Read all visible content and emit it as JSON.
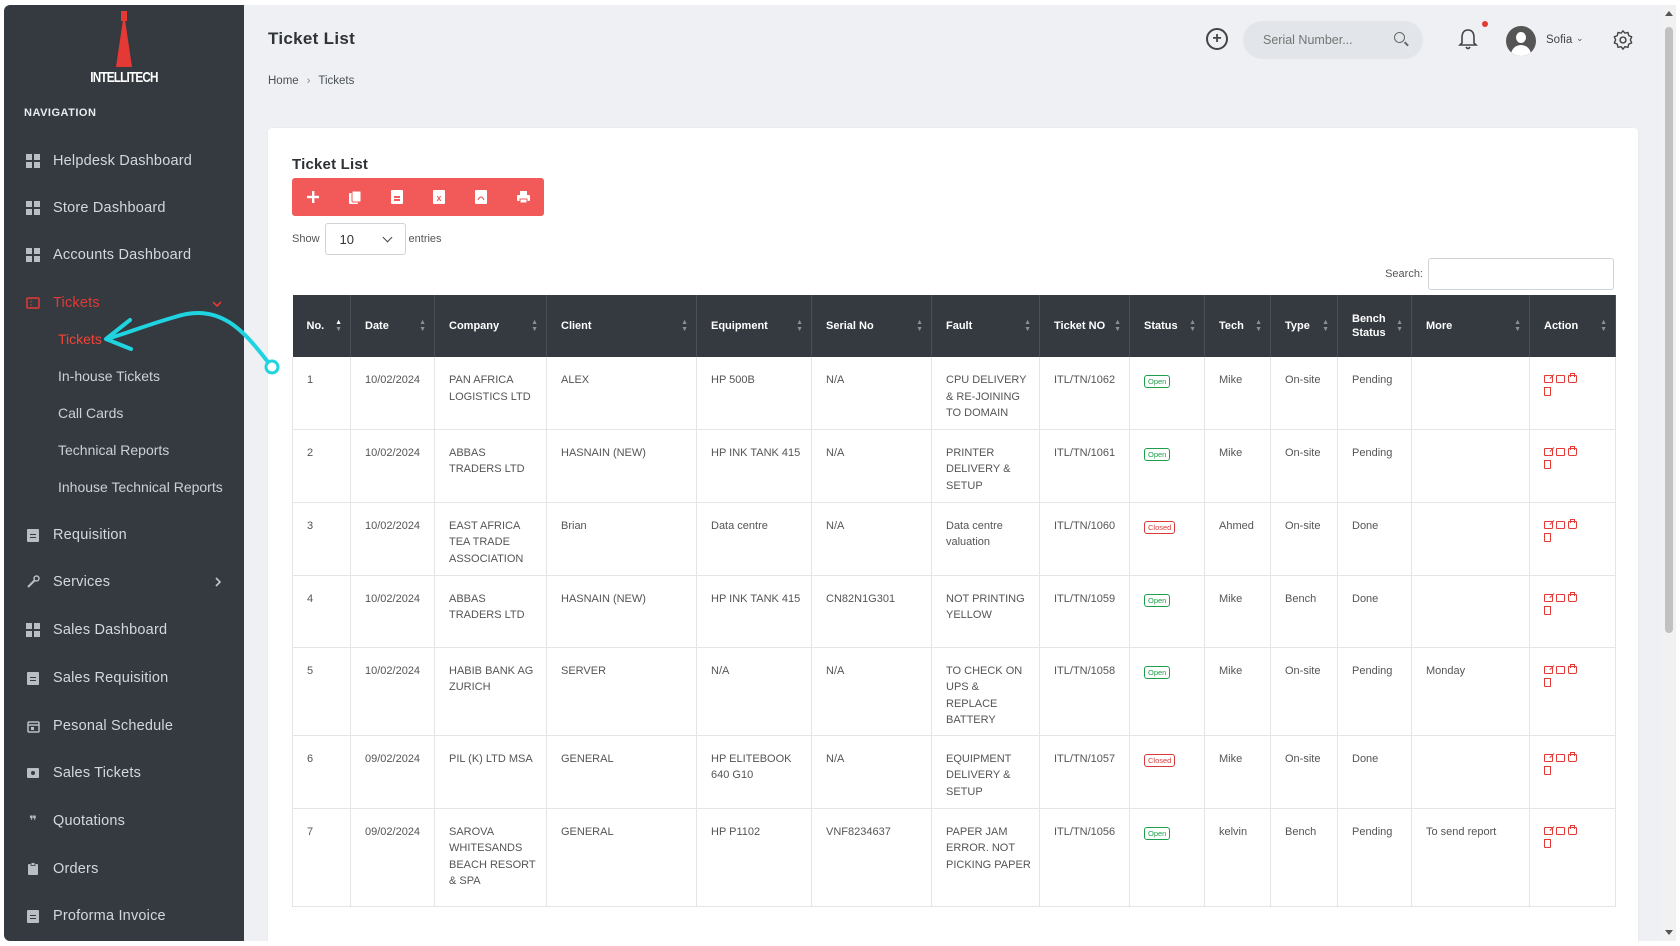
{
  "brand": {
    "name": "INTELLITECH"
  },
  "sidebar": {
    "heading": "NAVIGATION",
    "items": [
      {
        "label": "Helpdesk Dashboard",
        "icon": "dashboard-icon"
      },
      {
        "label": "Store Dashboard",
        "icon": "dashboard-icon"
      },
      {
        "label": "Accounts Dashboard",
        "icon": "dashboard-icon"
      },
      {
        "label": "Tickets",
        "icon": "ticket-icon",
        "expanded": true
      },
      {
        "label": "Requisition",
        "icon": "document-icon"
      },
      {
        "label": "Services",
        "icon": "wrench-icon"
      },
      {
        "label": "Sales Dashboard",
        "icon": "dashboard-icon"
      },
      {
        "label": "Sales Requisition",
        "icon": "document-icon"
      },
      {
        "label": "Pesonal Schedule",
        "icon": "calendar-icon"
      },
      {
        "label": "Sales Tickets",
        "icon": "ticket-icon"
      },
      {
        "label": "Quotations",
        "icon": "quote-icon"
      },
      {
        "label": "Orders",
        "icon": "clipboard-icon"
      },
      {
        "label": "Proforma Invoice",
        "icon": "document-icon"
      }
    ],
    "tickets_submenu": [
      {
        "label": "Tickets",
        "active": true
      },
      {
        "label": "In-house Tickets"
      },
      {
        "label": "Call Cards"
      },
      {
        "label": "Technical Reports"
      },
      {
        "label": "Inhouse Technical Reports"
      }
    ]
  },
  "header": {
    "title": "Ticket List",
    "search_placeholder": "Serial Number...",
    "user_name": "Sofia",
    "breadcrumb": [
      "Home",
      "Tickets"
    ]
  },
  "card": {
    "title": "Ticket List",
    "show_label": "Show",
    "entries_value": "10",
    "entries_label": "entries",
    "search_label": "Search:",
    "toolbar": [
      "add-icon",
      "copy-icon",
      "csv-icon",
      "excel-icon",
      "pdf-icon",
      "print-icon"
    ]
  },
  "table": {
    "columns": [
      "No.",
      "Date",
      "Company",
      "Client",
      "Equipment",
      "Serial No",
      "Fault",
      "Ticket NO",
      "Status",
      "Tech",
      "Type",
      "Bench Status",
      "More",
      "Action"
    ],
    "rows": [
      {
        "no": "1",
        "date": "10/02/2024",
        "company": "PAN AFRICA LOGISTICS LTD",
        "client": "ALEX",
        "equipment": "HP 500B",
        "serial": "N/A",
        "fault": "CPU DELIVERY & RE-JOINING TO DOMAIN",
        "ticket": "ITL/TN/1062",
        "status": "Open",
        "tech": "Mike",
        "type": "On-site",
        "bench": "Pending",
        "more": ""
      },
      {
        "no": "2",
        "date": "10/02/2024",
        "company": "ABBAS TRADERS LTD",
        "client": "HASNAIN (NEW)",
        "equipment": "HP INK TANK 415",
        "serial": "N/A",
        "fault": "PRINTER DELIVERY & SETUP",
        "ticket": "ITL/TN/1061",
        "status": "Open",
        "tech": "Mike",
        "type": "On-site",
        "bench": "Pending",
        "more": ""
      },
      {
        "no": "3",
        "date": "10/02/2024",
        "company": "EAST AFRICA TEA TRADE ASSOCIATION",
        "client": "Brian",
        "equipment": "Data centre",
        "serial": "N/A",
        "fault": "Data centre valuation",
        "ticket": "ITL/TN/1060",
        "status": "Closed",
        "tech": "Ahmed",
        "type": "On-site",
        "bench": "Done",
        "more": ""
      },
      {
        "no": "4",
        "date": "10/02/2024",
        "company": "ABBAS TRADERS LTD",
        "client": "HASNAIN (NEW)",
        "equipment": "HP INK TANK 415",
        "serial": "CN82N1G301",
        "fault": "NOT PRINTING YELLOW",
        "ticket": "ITL/TN/1059",
        "status": "Open",
        "tech": "Mike",
        "type": "Bench",
        "bench": "Done",
        "more": ""
      },
      {
        "no": "5",
        "date": "10/02/2024",
        "company": "HABIB BANK AG ZURICH",
        "client": "SERVER",
        "equipment": "N/A",
        "serial": "N/A",
        "fault": "TO CHECK ON UPS & REPLACE BATTERY",
        "ticket": "ITL/TN/1058",
        "status": "Open",
        "tech": "Mike",
        "type": "On-site",
        "bench": "Pending",
        "more": "Monday"
      },
      {
        "no": "6",
        "date": "09/02/2024",
        "company": "PIL (K) LTD MSA",
        "client": "GENERAL",
        "equipment": "HP ELITEBOOK 640 G10",
        "serial": "N/A",
        "fault": "EQUIPMENT DELIVERY & SETUP",
        "ticket": "ITL/TN/1057",
        "status": "Closed",
        "tech": "Mike",
        "type": "On-site",
        "bench": "Done",
        "more": ""
      },
      {
        "no": "7",
        "date": "09/02/2024",
        "company": "SAROVA WHITESANDS BEACH RESORT & SPA",
        "client": "GENERAL",
        "equipment": "HP P1102",
        "serial": "VNF8234637",
        "fault": "PAPER JAM ERROR. NOT PICKING PAPER",
        "ticket": "ITL/TN/1056",
        "status": "Open",
        "tech": "kelvin",
        "type": "Bench",
        "bench": "Pending",
        "more": "To send report"
      }
    ]
  },
  "colors": {
    "accent": "#f25a5a",
    "sidebar": "#343a40",
    "active": "#e53935",
    "annotation": "#1fd3e0"
  }
}
